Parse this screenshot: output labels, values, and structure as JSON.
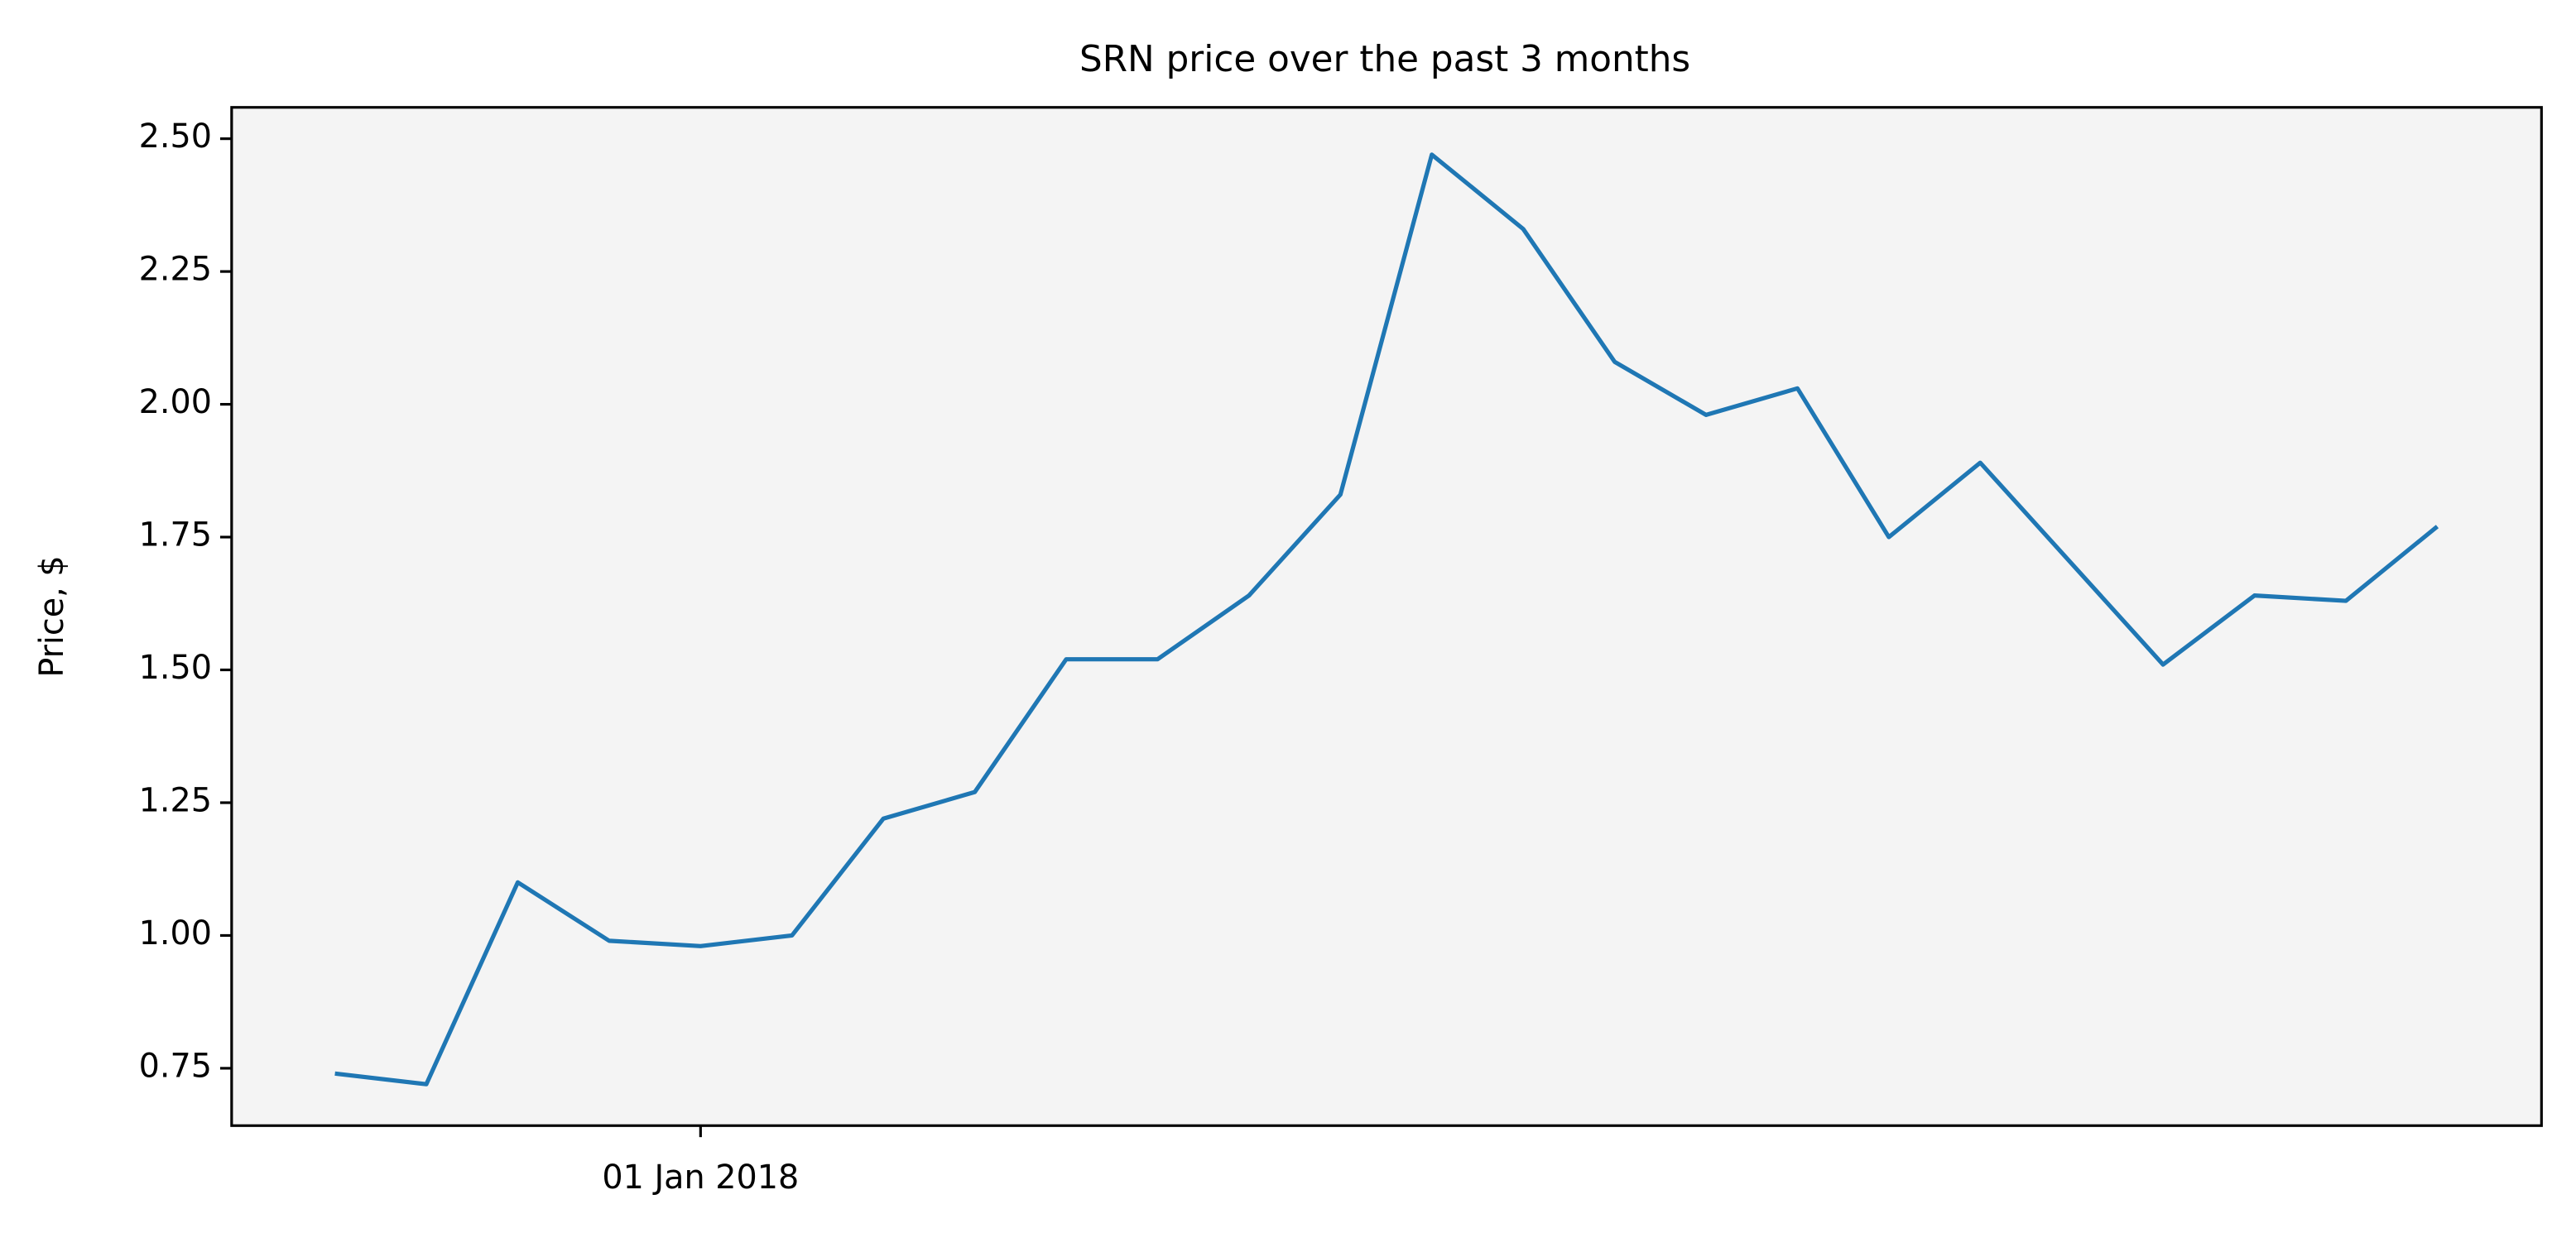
{
  "chart_data": {
    "type": "line",
    "title": "SRN price over the past 3 months",
    "y_label": "Price, $",
    "categories": [
      null,
      null,
      null,
      null,
      "01 Jan 2018",
      null,
      null,
      null,
      null,
      null,
      null,
      null,
      null,
      null,
      null,
      null,
      null,
      null,
      null,
      null,
      null,
      null,
      null,
      null
    ],
    "values": [
      0.74,
      0.72,
      1.1,
      0.99,
      0.98,
      1.0,
      1.22,
      1.27,
      1.52,
      1.52,
      1.64,
      1.83,
      2.47,
      2.33,
      2.08,
      1.98,
      2.03,
      1.75,
      1.89,
      1.7,
      1.51,
      1.64,
      1.63,
      1.77
    ],
    "color": "#1f77b4",
    "ylim": [
      0.642,
      2.559
    ],
    "yticks": [
      {
        "value": 0.75,
        "label": "0.75"
      },
      {
        "value": 1.0,
        "label": "1.00"
      },
      {
        "value": 1.25,
        "label": "1.25"
      },
      {
        "value": 1.5,
        "label": "1.50"
      },
      {
        "value": 1.75,
        "label": "1.75"
      },
      {
        "value": 2.0,
        "label": "2.00"
      },
      {
        "value": 2.25,
        "label": "2.25"
      },
      {
        "value": 2.5,
        "label": "2.50"
      }
    ],
    "grid": false
  }
}
